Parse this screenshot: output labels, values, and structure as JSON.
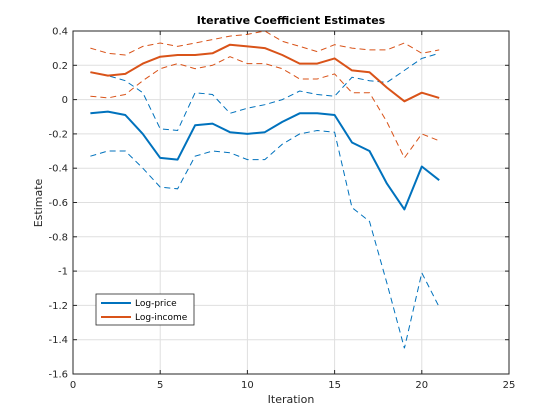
{
  "chart_data": {
    "type": "line",
    "title": "Iterative Coefficient Estimates",
    "xlabel": "Iteration",
    "ylabel": "Estimate",
    "xlim": [
      0,
      25
    ],
    "ylim": [
      -1.6,
      0.4
    ],
    "xticks": [
      "0",
      "5",
      "10",
      "15",
      "20",
      "25"
    ],
    "yticks": [
      "-1.6",
      "-1.4",
      "-1.2",
      "-1",
      "-0.8",
      "-0.6",
      "-0.4",
      "-0.2",
      "0",
      "0.2",
      "0.4"
    ],
    "grid": true,
    "legend_position": "lower-left",
    "x": [
      1,
      2,
      3,
      4,
      5,
      6,
      7,
      8,
      9,
      10,
      11,
      12,
      13,
      14,
      15,
      16,
      17,
      18,
      19,
      20,
      21
    ],
    "series": [
      {
        "name": "Log-price",
        "color": "#0072BD",
        "values": [
          -0.08,
          -0.07,
          -0.09,
          -0.2,
          -0.34,
          -0.35,
          -0.15,
          -0.14,
          -0.19,
          -0.2,
          -0.19,
          -0.13,
          -0.08,
          -0.08,
          -0.09,
          -0.25,
          -0.3,
          -0.49,
          -0.64,
          -0.39,
          -0.47
        ],
        "upper": [
          0.16,
          0.14,
          0.11,
          0.04,
          -0.17,
          -0.18,
          0.04,
          0.03,
          -0.08,
          -0.05,
          -0.03,
          0.0,
          0.05,
          0.03,
          0.02,
          0.13,
          0.11,
          0.1,
          0.17,
          0.24,
          0.27
        ],
        "lower": [
          -0.33,
          -0.3,
          -0.3,
          -0.4,
          -0.51,
          -0.52,
          -0.33,
          -0.3,
          -0.31,
          -0.35,
          -0.35,
          -0.26,
          -0.2,
          -0.18,
          -0.19,
          -0.63,
          -0.71,
          -1.07,
          -1.45,
          -1.01,
          -1.21
        ]
      },
      {
        "name": "Log-income",
        "color": "#D95319",
        "values": [
          0.16,
          0.14,
          0.15,
          0.21,
          0.25,
          0.26,
          0.26,
          0.27,
          0.32,
          0.31,
          0.3,
          0.26,
          0.21,
          0.21,
          0.24,
          0.17,
          0.16,
          0.07,
          -0.01,
          0.04,
          0.01
        ],
        "upper": [
          0.3,
          0.27,
          0.26,
          0.31,
          0.33,
          0.31,
          0.33,
          0.35,
          0.37,
          0.38,
          0.4,
          0.34,
          0.31,
          0.28,
          0.32,
          0.3,
          0.29,
          0.29,
          0.33,
          0.27,
          0.29
        ],
        "lower": [
          0.02,
          0.01,
          0.03,
          0.11,
          0.18,
          0.21,
          0.18,
          0.2,
          0.25,
          0.21,
          0.21,
          0.18,
          0.12,
          0.12,
          0.15,
          0.04,
          0.04,
          -0.13,
          -0.34,
          -0.2,
          -0.24
        ]
      }
    ]
  }
}
